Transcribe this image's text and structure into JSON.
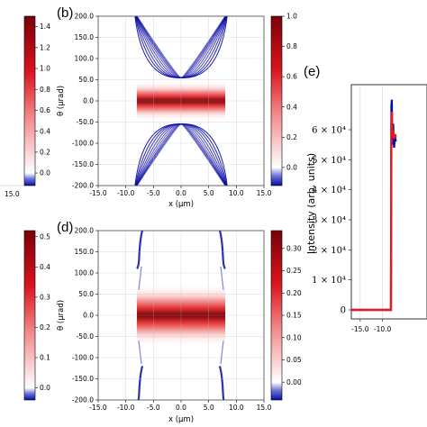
{
  "panels": {
    "b": "(b)",
    "d": "(d)",
    "e": "(e)"
  },
  "colormap": {
    "low": "#0a0aa8",
    "mid": "#ffffff",
    "high": "#7a0008"
  },
  "chart_data": [
    {
      "panel": "left-top colorbar (partial)",
      "type": "heatmap",
      "colorbar_ticks": [
        "1.4",
        "1.2",
        "1.0",
        "0.8",
        "0.6",
        "0.4",
        "0.2",
        "0.0"
      ],
      "vmin": -0.12,
      "vmax": 1.5,
      "edge_tick_label": "15.0"
    },
    {
      "panel": "b",
      "type": "heatmap",
      "xlabel": "x (μm)",
      "ylabel": "θ (μrad)",
      "x_ticks": [
        "-15.0",
        "-10.0",
        "-5.0",
        "0.0",
        "5.0",
        "10.0",
        "15.0"
      ],
      "y_ticks": [
        "200.0",
        "150.0",
        "100.0",
        "50.0",
        "0.0",
        "-50.0",
        "-100.0",
        "-150.0",
        "-200.0"
      ],
      "xlim": [
        -15,
        15
      ],
      "ylim": [
        -200,
        200
      ],
      "colorbar_ticks": [
        "1.0",
        "0.8",
        "0.6",
        "0.4",
        "0.2",
        "0.0"
      ],
      "vmin": -0.12,
      "vmax": 1.0,
      "central_band": {
        "x_range": [
          -8,
          8
        ],
        "theta_range": [
          -25,
          25
        ],
        "peak": 1.0
      },
      "fringe_arcs": {
        "apex_x_offsets": [
          0.3,
          0.8,
          1.4,
          2.1,
          2.9,
          3.8,
          4.8,
          5.8,
          6.9
        ],
        "apex_theta": 55,
        "edge_theta": 200,
        "value": -0.12
      }
    },
    {
      "panel": "left-bottom colorbar (partial)",
      "type": "heatmap",
      "colorbar_ticks": [
        "0.5",
        "0.4",
        "0.3",
        "0.2",
        "0.1",
        "0.0"
      ],
      "vmin": -0.04,
      "vmax": 0.52
    },
    {
      "panel": "d",
      "type": "heatmap",
      "xlabel": "x (μm)",
      "ylabel": "θ (μrad)",
      "x_ticks": [
        "-15.0",
        "-10.0",
        "-5.0",
        "0.0",
        "5.0",
        "10.0",
        "15.0"
      ],
      "y_ticks": [
        "200.0",
        "150.0",
        "100.0",
        "50.0",
        "0.0",
        "-50.0",
        "-100.0",
        "-150.0",
        "-200.0"
      ],
      "xlim": [
        -15,
        15
      ],
      "ylim": [
        -200,
        200
      ],
      "colorbar_ticks": [
        "0.30",
        "0.25",
        "0.20",
        "0.15",
        "0.10",
        "0.05",
        "0.00"
      ],
      "vmin": -0.04,
      "vmax": 0.34,
      "central_band": {
        "x_range": [
          -8,
          8
        ],
        "theta_range": [
          -50,
          50
        ],
        "peak": 0.34
      },
      "edge_features": {
        "x_positions": [
          -7.5,
          7.5
        ],
        "theta_range": [
          -200,
          200
        ],
        "value": -0.04
      }
    },
    {
      "panel": "e",
      "type": "line",
      "ylabel": "Intensity (arb. units)",
      "x_ticks": [
        "-15.0",
        "-10.0"
      ],
      "y_ticks": [
        "0",
        "1 × 10⁴",
        "2 × 10⁴",
        "3 × 10⁴",
        "4 × 10⁴",
        "5 × 10⁴",
        "6 × 10⁴"
      ],
      "xlim": [
        -17,
        0
      ],
      "ylim": [
        -3000,
        75000
      ],
      "series": [
        {
          "color": "#0a0aa8",
          "x": [
            -17,
            -8.1,
            -8.0,
            -7.9,
            -7.8,
            -7.6,
            -7.4,
            -7.2,
            -7.0
          ],
          "y": [
            0,
            0,
            68000,
            70000,
            55000,
            62000,
            54000,
            58000,
            56000
          ]
        },
        {
          "color": "#e31a1c",
          "x": [
            -17,
            -8.1,
            -8.0,
            -7.9,
            -7.8,
            -7.6,
            -7.4,
            -7.2,
            -7.0
          ],
          "y": [
            0,
            0,
            62000,
            66000,
            58000,
            60000,
            57000,
            58500,
            57500
          ]
        }
      ]
    }
  ]
}
